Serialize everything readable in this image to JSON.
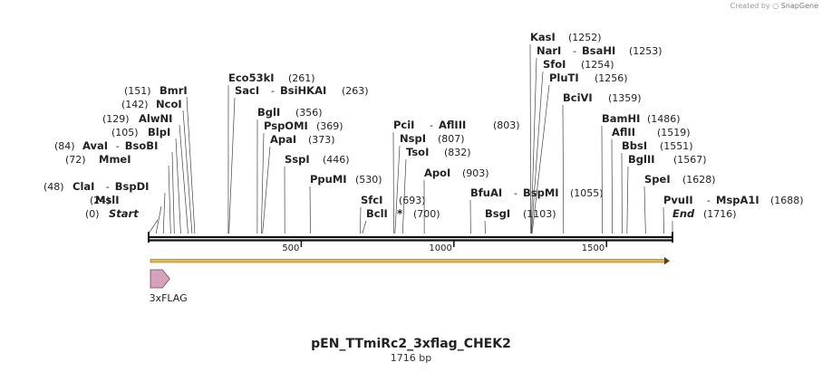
{
  "credit": {
    "prefix": "Created by",
    "brand": "SnapGene"
  },
  "plasmid": {
    "name": "pEN_TTmiRc2_3xflag_CHEK2",
    "size_label": "1716 bp",
    "length": 1716
  },
  "axis": {
    "ticks": [
      500,
      1000,
      1500
    ]
  },
  "features": [
    {
      "name": "3xFLAG",
      "start": 1,
      "end": 66,
      "color": "#d4a2bb"
    }
  ],
  "orf": {
    "start": 1,
    "end": 1716,
    "color": "#e8b84a"
  },
  "sites": [
    {
      "name": "Start",
      "pos": 0,
      "label": "(0)",
      "italic": true
    },
    {
      "name": "MslI",
      "pos": 24,
      "label": "(24)"
    },
    {
      "name": "ClaI",
      "alt": "BspDI",
      "pos": 48,
      "label": "(48)"
    },
    {
      "name": "MmeI",
      "pos": 72,
      "label": "(72)"
    },
    {
      "name": "AvaI",
      "alt": "BsoBI",
      "pos": 84,
      "label": "(84)"
    },
    {
      "name": "BlpI",
      "pos": 105,
      "label": "(105)"
    },
    {
      "name": "AlwNI",
      "pos": 129,
      "label": "(129)"
    },
    {
      "name": "NcoI",
      "pos": 142,
      "label": "(142)"
    },
    {
      "name": "BmrI",
      "pos": 151,
      "label": "(151)"
    },
    {
      "name": "Eco53kI",
      "pos": 261,
      "label": "(261)"
    },
    {
      "name": "SacI",
      "alt": "BsiHKAI",
      "pos": 263,
      "label": "(263)"
    },
    {
      "name": "BglI",
      "pos": 356,
      "label": "(356)"
    },
    {
      "name": "PspOMI",
      "pos": 369,
      "label": "(369)"
    },
    {
      "name": "ApaI",
      "pos": 373,
      "label": "(373)"
    },
    {
      "name": "SspI",
      "pos": 446,
      "label": "(446)"
    },
    {
      "name": "PpuMI",
      "pos": 530,
      "label": "(530)"
    },
    {
      "name": "SfcI",
      "pos": 693,
      "label": "(693)"
    },
    {
      "name": "BclI",
      "star": "*",
      "pos": 700,
      "label": "(700)"
    },
    {
      "name": "PciI",
      "alt": "AflIII",
      "pos": 803,
      "label": "(803)"
    },
    {
      "name": "NspI",
      "pos": 807,
      "label": "(807)"
    },
    {
      "name": "TsoI",
      "pos": 832,
      "label": "(832)"
    },
    {
      "name": "ApoI",
      "pos": 903,
      "label": "(903)"
    },
    {
      "name": "BfuAI",
      "alt": "BspMI",
      "pos": 1055,
      "label": "(1055)"
    },
    {
      "name": "BsgI",
      "pos": 1103,
      "label": "(1103)"
    },
    {
      "name": "KasI",
      "pos": 1252,
      "label": "(1252)"
    },
    {
      "name": "NarI",
      "alt": "BsaHI",
      "pos": 1253,
      "label": "(1253)"
    },
    {
      "name": "SfoI",
      "pos": 1254,
      "label": "(1254)"
    },
    {
      "name": "PluTI",
      "pos": 1256,
      "label": "(1256)"
    },
    {
      "name": "BciVI",
      "pos": 1359,
      "label": "(1359)"
    },
    {
      "name": "BamHI",
      "pos": 1486,
      "label": "(1486)"
    },
    {
      "name": "AflII",
      "pos": 1519,
      "label": "(1519)"
    },
    {
      "name": "BbsI",
      "pos": 1551,
      "label": "(1551)"
    },
    {
      "name": "BglII",
      "pos": 1567,
      "label": "(1567)"
    },
    {
      "name": "SpeI",
      "pos": 1628,
      "label": "(1628)"
    },
    {
      "name": "PvuII",
      "alt": "MspA1I",
      "pos": 1688,
      "label": "(1688)"
    },
    {
      "name": "End",
      "pos": 1716,
      "label": "(1716)",
      "italic": true
    }
  ]
}
